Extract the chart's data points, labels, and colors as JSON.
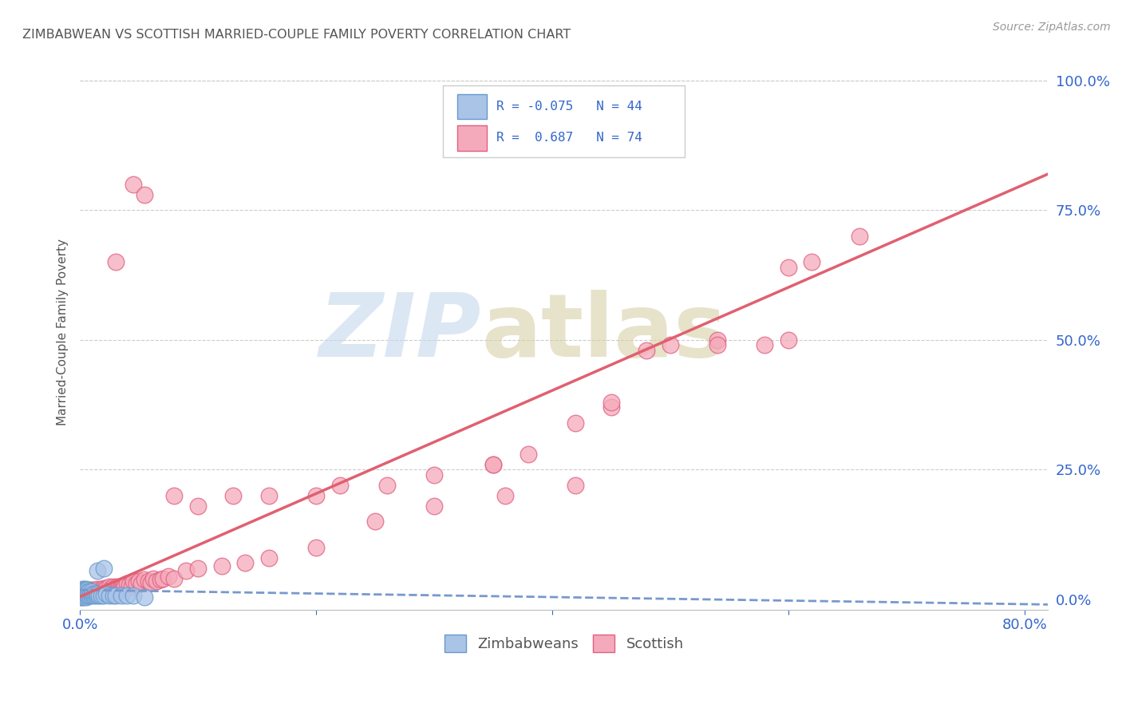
{
  "title": "ZIMBABWEAN VS SCOTTISH MARRIED-COUPLE FAMILY POVERTY CORRELATION CHART",
  "source": "Source: ZipAtlas.com",
  "ylabel": "Married-Couple Family Poverty",
  "xlim": [
    0.0,
    0.82
  ],
  "ylim": [
    -0.02,
    1.05
  ],
  "yticks": [
    0.0,
    0.25,
    0.5,
    0.75,
    1.0
  ],
  "ytick_labels": [
    "0.0%",
    "25.0%",
    "50.0%",
    "75.0%",
    "100.0%"
  ],
  "blue_R": -0.075,
  "blue_N": 44,
  "pink_R": 0.687,
  "pink_N": 74,
  "blue_scatter_color": "#aac4e8",
  "blue_edge_color": "#6699cc",
  "pink_scatter_color": "#f5aabb",
  "pink_edge_color": "#e06080",
  "blue_line_color": "#7799cc",
  "pink_line_color": "#e06070",
  "legend_text_color": "#3366cc",
  "title_color": "#555555",
  "axis_label_color": "#555555",
  "tick_color": "#3366cc",
  "grid_color": "#cccccc",
  "background_color": "#ffffff",
  "blue_scatter_x": [
    0.001,
    0.001,
    0.002,
    0.002,
    0.002,
    0.003,
    0.003,
    0.003,
    0.003,
    0.004,
    0.004,
    0.004,
    0.005,
    0.005,
    0.005,
    0.005,
    0.006,
    0.006,
    0.006,
    0.007,
    0.007,
    0.008,
    0.008,
    0.009,
    0.01,
    0.01,
    0.011,
    0.012,
    0.013,
    0.014,
    0.015,
    0.016,
    0.018,
    0.02,
    0.022,
    0.025,
    0.028,
    0.03,
    0.035,
    0.04,
    0.045,
    0.055,
    0.015,
    0.02
  ],
  "blue_scatter_y": [
    0.005,
    0.01,
    0.01,
    0.015,
    0.02,
    0.005,
    0.01,
    0.015,
    0.02,
    0.008,
    0.012,
    0.018,
    0.005,
    0.01,
    0.015,
    0.02,
    0.008,
    0.012,
    0.018,
    0.008,
    0.015,
    0.008,
    0.015,
    0.01,
    0.008,
    0.015,
    0.01,
    0.008,
    0.01,
    0.008,
    0.01,
    0.008,
    0.008,
    0.008,
    0.01,
    0.008,
    0.008,
    0.008,
    0.008,
    0.008,
    0.008,
    0.005,
    0.055,
    0.06
  ],
  "pink_scatter_x": [
    0.001,
    0.002,
    0.003,
    0.004,
    0.005,
    0.005,
    0.006,
    0.007,
    0.008,
    0.008,
    0.009,
    0.01,
    0.01,
    0.011,
    0.012,
    0.012,
    0.013,
    0.014,
    0.015,
    0.015,
    0.016,
    0.017,
    0.018,
    0.018,
    0.019,
    0.02,
    0.02,
    0.021,
    0.022,
    0.022,
    0.023,
    0.024,
    0.025,
    0.025,
    0.026,
    0.027,
    0.028,
    0.028,
    0.029,
    0.03,
    0.031,
    0.032,
    0.033,
    0.034,
    0.035,
    0.036,
    0.037,
    0.038,
    0.04,
    0.042,
    0.044,
    0.045,
    0.048,
    0.05,
    0.052,
    0.055,
    0.058,
    0.06,
    0.062,
    0.065,
    0.068,
    0.07,
    0.075,
    0.08,
    0.09,
    0.1,
    0.12,
    0.14,
    0.16,
    0.2,
    0.25,
    0.35,
    0.45,
    0.6
  ],
  "pink_scatter_y": [
    0.005,
    0.008,
    0.01,
    0.012,
    0.008,
    0.015,
    0.01,
    0.012,
    0.01,
    0.018,
    0.012,
    0.01,
    0.018,
    0.012,
    0.01,
    0.018,
    0.015,
    0.012,
    0.01,
    0.02,
    0.012,
    0.015,
    0.01,
    0.02,
    0.015,
    0.012,
    0.022,
    0.018,
    0.012,
    0.022,
    0.015,
    0.018,
    0.012,
    0.025,
    0.02,
    0.015,
    0.012,
    0.025,
    0.018,
    0.02,
    0.025,
    0.018,
    0.025,
    0.02,
    0.025,
    0.022,
    0.028,
    0.025,
    0.03,
    0.028,
    0.025,
    0.035,
    0.03,
    0.035,
    0.03,
    0.038,
    0.035,
    0.032,
    0.04,
    0.035,
    0.038,
    0.04,
    0.045,
    0.04,
    0.055,
    0.06,
    0.065,
    0.07,
    0.08,
    0.1,
    0.15,
    0.26,
    0.37,
    0.5
  ],
  "pink_outliers_x": [
    0.03,
    0.045,
    0.055,
    0.08,
    0.1,
    0.13,
    0.16,
    0.2,
    0.22,
    0.26,
    0.3,
    0.35,
    0.38,
    0.42,
    0.45,
    0.5,
    0.54,
    0.58,
    0.62,
    0.66,
    0.3,
    0.36,
    0.42,
    0.48,
    0.54,
    0.6
  ],
  "pink_outliers_y": [
    0.65,
    0.8,
    0.78,
    0.2,
    0.18,
    0.2,
    0.2,
    0.2,
    0.22,
    0.22,
    0.24,
    0.26,
    0.28,
    0.34,
    0.38,
    0.49,
    0.5,
    0.49,
    0.65,
    0.7,
    0.18,
    0.2,
    0.22,
    0.48,
    0.49,
    0.64
  ],
  "blue_trend_x0": 0.0,
  "blue_trend_y0": 0.018,
  "blue_trend_x1": 0.82,
  "blue_trend_y1": -0.01,
  "pink_trend_x0": 0.0,
  "pink_trend_y0": 0.005,
  "pink_trend_x1": 0.82,
  "pink_trend_y1": 0.82
}
